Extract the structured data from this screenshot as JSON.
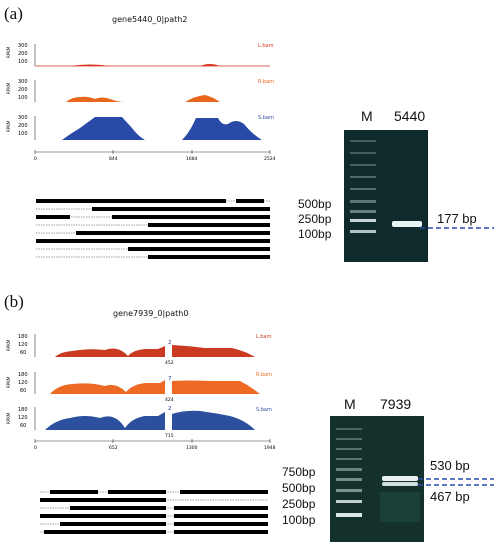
{
  "panels": [
    {
      "label": "(a)",
      "gene": "gene5440_0|path2",
      "ylabel": "RPKM",
      "tracks": [
        {
          "name": "L.bam",
          "color": "#d9351f",
          "yticks": [
            "300",
            "200",
            "100"
          ]
        },
        {
          "name": "R.bam",
          "color": "#e8671d",
          "yticks": [
            "300",
            "200",
            "100"
          ]
        },
        {
          "name": "S.bam",
          "color": "#2a4aa8",
          "yticks": [
            "300",
            "200",
            "100"
          ]
        }
      ],
      "xticks": [
        "0",
        "844",
        "1684",
        "2524"
      ],
      "gel": {
        "marker": "M",
        "sample": "5440",
        "ladder": [
          "500bp",
          "250bp",
          "100bp"
        ],
        "band": "177 bp"
      }
    },
    {
      "label": "(b)",
      "gene": "gene7939_0|path0",
      "ylabel": "RPKM",
      "tracks": [
        {
          "name": "L.bam",
          "color": "#c93a21",
          "yticks": [
            "180",
            "120",
            "60"
          ],
          "junction_count": "2",
          "junction_pos": "452"
        },
        {
          "name": "R.bam",
          "color": "#ec6a24",
          "yticks": [
            "180",
            "120",
            "60"
          ],
          "junction_count": "7",
          "junction_pos": "424"
        },
        {
          "name": "S.bam",
          "color": "#2c4f9e",
          "yticks": [
            "180",
            "120",
            "60"
          ],
          "junction_count": "2",
          "junction_pos": "715"
        }
      ],
      "xticks": [
        "0",
        "652",
        "1300",
        "1948"
      ],
      "gel": {
        "marker": "M",
        "sample": "7939",
        "ladder": [
          "750bp",
          "500bp",
          "250bp",
          "100bp"
        ],
        "band_upper": "530 bp",
        "band_lower": "467 bp"
      }
    }
  ]
}
